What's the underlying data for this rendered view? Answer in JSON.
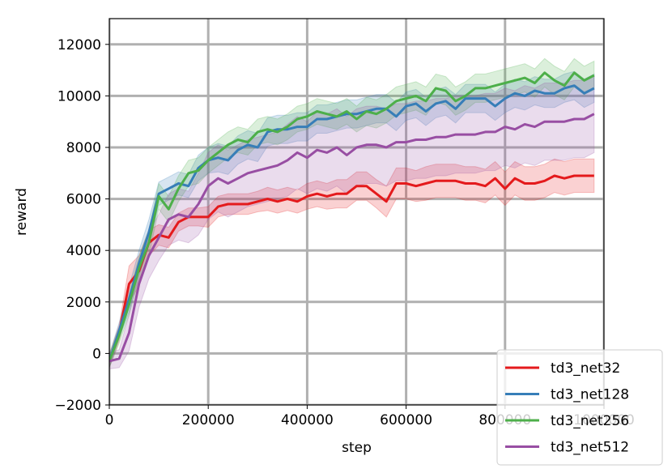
{
  "chart_data": {
    "type": "line",
    "xlabel": "step",
    "ylabel": "reward",
    "xlim": [
      0,
      1000000
    ],
    "ylim": [
      -2000,
      13000
    ],
    "xticks": [
      0,
      200000,
      400000,
      600000,
      800000,
      1000000
    ],
    "xtick_labels": [
      "0",
      "200000",
      "400000",
      "600000",
      "800000",
      "1000000"
    ],
    "yticks": [
      -2000,
      0,
      2000,
      4000,
      6000,
      8000,
      10000,
      12000
    ],
    "ytick_labels": [
      "−2000",
      "0",
      "2000",
      "4000",
      "6000",
      "8000",
      "10000",
      "12000"
    ],
    "grid": true,
    "legend_position": "bottom-right",
    "x": [
      0,
      20000,
      40000,
      60000,
      80000,
      100000,
      120000,
      140000,
      160000,
      180000,
      200000,
      220000,
      240000,
      260000,
      280000,
      300000,
      320000,
      340000,
      360000,
      380000,
      400000,
      420000,
      440000,
      460000,
      480000,
      500000,
      520000,
      540000,
      560000,
      580000,
      600000,
      620000,
      640000,
      660000,
      680000,
      700000,
      720000,
      740000,
      760000,
      780000,
      800000,
      820000,
      840000,
      860000,
      880000,
      900000,
      920000,
      940000,
      960000,
      980000
    ],
    "series": [
      {
        "name": "td3_net32",
        "color": "#e41a1c",
        "values": [
          -300,
          800,
          2700,
          3200,
          4300,
          4600,
          4500,
          5100,
          5300,
          5300,
          5300,
          5700,
          5800,
          5800,
          5800,
          5900,
          6000,
          5900,
          6000,
          5900,
          6100,
          6200,
          6100,
          6200,
          6200,
          6500,
          6500,
          6200,
          5900,
          6600,
          6600,
          6500,
          6600,
          6700,
          6700,
          6700,
          6600,
          6600,
          6500,
          6800,
          6400,
          6800,
          6600,
          6600,
          6700,
          6900,
          6800,
          6900,
          6900,
          6900
        ],
        "band": [
          250,
          300,
          700,
          600,
          500,
          400,
          400,
          350,
          350,
          350,
          400,
          400,
          400,
          400,
          400,
          400,
          450,
          450,
          450,
          450,
          500,
          500,
          500,
          550,
          550,
          550,
          550,
          550,
          600,
          600,
          600,
          600,
          650,
          650,
          650,
          650,
          650,
          650,
          650,
          650,
          650,
          650,
          650,
          650,
          650,
          650,
          650,
          650,
          650,
          650
        ]
      },
      {
        "name": "td3_net128",
        "color": "#377eb8",
        "values": [
          -300,
          900,
          2100,
          3500,
          4700,
          6200,
          6400,
          6600,
          6500,
          7200,
          7500,
          7600,
          7500,
          7900,
          8100,
          8000,
          8600,
          8700,
          8700,
          8800,
          8800,
          9100,
          9100,
          9200,
          9300,
          9300,
          9400,
          9500,
          9500,
          9200,
          9600,
          9700,
          9400,
          9700,
          9800,
          9500,
          9900,
          9900,
          9900,
          9600,
          9900,
          10100,
          10000,
          10200,
          10100,
          10100,
          10300,
          10400,
          10100,
          10300
        ],
        "band": [
          250,
          300,
          500,
          500,
          500,
          450,
          450,
          450,
          450,
          500,
          500,
          550,
          550,
          550,
          550,
          550,
          550,
          550,
          550,
          550,
          550,
          550,
          550,
          550,
          550,
          550,
          550,
          550,
          550,
          550,
          550,
          550,
          550,
          550,
          550,
          550,
          550,
          550,
          550,
          550,
          550,
          550,
          550,
          550,
          550,
          550,
          550,
          550,
          550,
          550
        ]
      },
      {
        "name": "td3_net256",
        "color": "#4daf4a",
        "values": [
          -300,
          700,
          1900,
          3300,
          4300,
          6100,
          5600,
          6400,
          7000,
          7100,
          7500,
          7800,
          8100,
          8300,
          8200,
          8600,
          8700,
          8600,
          8800,
          9100,
          9200,
          9400,
          9300,
          9200,
          9400,
          9100,
          9400,
          9300,
          9500,
          9800,
          9900,
          10000,
          9800,
          10300,
          10200,
          9800,
          10000,
          10300,
          10300,
          10400,
          10500,
          10600,
          10700,
          10500,
          10900,
          10600,
          10400,
          10900,
          10600,
          10800
        ],
        "band": [
          250,
          300,
          400,
          450,
          500,
          500,
          500,
          500,
          500,
          500,
          500,
          500,
          500,
          500,
          500,
          500,
          500,
          500,
          500,
          500,
          500,
          500,
          500,
          500,
          500,
          500,
          550,
          550,
          550,
          550,
          550,
          550,
          550,
          550,
          550,
          550,
          550,
          550,
          550,
          550,
          550,
          550,
          550,
          550,
          550,
          550,
          550,
          550,
          550,
          550
        ]
      },
      {
        "name": "td3_net512",
        "color": "#984ea3",
        "values": [
          -300,
          -200,
          800,
          2700,
          3800,
          4500,
          5200,
          5400,
          5300,
          5800,
          6500,
          6800,
          6600,
          6800,
          7000,
          7100,
          7200,
          7300,
          7500,
          7800,
          7600,
          7900,
          7800,
          8000,
          7700,
          8000,
          8100,
          8100,
          8000,
          8200,
          8200,
          8300,
          8300,
          8400,
          8400,
          8500,
          8500,
          8500,
          8600,
          8600,
          8800,
          8700,
          8900,
          8800,
          9000,
          9000,
          9000,
          9100,
          9100,
          9300
        ],
        "band": [
          300,
          350,
          700,
          900,
          900,
          900,
          1000,
          1000,
          1000,
          1200,
          1300,
          1300,
          1300,
          1300,
          1300,
          1300,
          1300,
          1300,
          1400,
          1400,
          1400,
          1500,
          1500,
          1500,
          1500,
          1500,
          1500,
          1500,
          1500,
          1500,
          1500,
          1500,
          1500,
          1500,
          1500,
          1500,
          1500,
          1500,
          1500,
          1500,
          1500,
          1500,
          1500,
          1500,
          1500,
          1500,
          1500,
          1500,
          1500,
          1500
        ]
      }
    ]
  }
}
